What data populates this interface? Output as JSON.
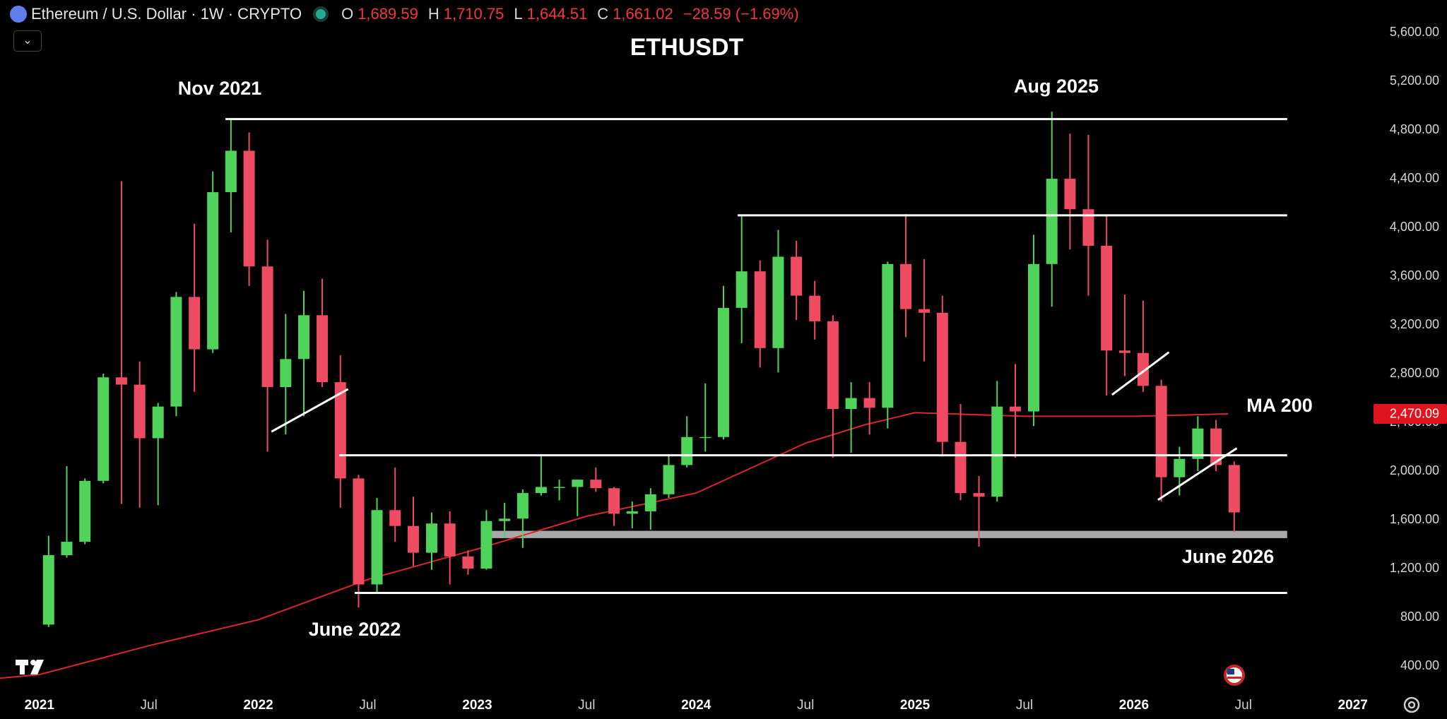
{
  "header": {
    "symbol": "Ethereum / U.S. Dollar · 1W · CRYPTO",
    "ohlc": [
      {
        "key": "O",
        "value": "1,689.59"
      },
      {
        "key": "H",
        "value": "1,710.75"
      },
      {
        "key": "L",
        "value": "1,644.51"
      },
      {
        "key": "C",
        "value": "1,661.02"
      }
    ],
    "change": "−28.59 (−1.69%)"
  },
  "chart_data": {
    "type": "candlestick",
    "title": "ETHUSDT",
    "up_color": "#4fd35a",
    "down_color": "#ef4b63",
    "x": [
      2021.042,
      2021.125,
      2021.208,
      2021.292,
      2021.375,
      2021.458,
      2021.542,
      2021.625,
      2021.708,
      2021.792,
      2021.875,
      2021.958,
      2022.042,
      2022.125,
      2022.208,
      2022.292,
      2022.375,
      2022.458,
      2022.542,
      2022.625,
      2022.708,
      2022.792,
      2022.875,
      2022.958,
      2023.042,
      2023.125,
      2023.208,
      2023.292,
      2023.375,
      2023.458,
      2023.542,
      2023.625,
      2023.708,
      2023.792,
      2023.875,
      2023.958,
      2024.042,
      2024.125,
      2024.208,
      2024.292,
      2024.375,
      2024.458,
      2024.542,
      2024.625,
      2024.708,
      2024.792,
      2024.875,
      2024.958,
      2025.042,
      2025.125,
      2025.208,
      2025.292,
      2025.375,
      2025.458,
      2025.542,
      2025.625,
      2025.708,
      2025.792,
      2025.875,
      2025.958,
      2026.042,
      2026.125,
      2026.208,
      2026.292,
      2026.375,
      2026.458
    ],
    "ohlc": [
      [
        740,
        1470,
        720,
        1310
      ],
      [
        1310,
        2040,
        1290,
        1420
      ],
      [
        1420,
        1940,
        1400,
        1920
      ],
      [
        1920,
        2800,
        1900,
        2770
      ],
      [
        2770,
        4380,
        1730,
        2710
      ],
      [
        2710,
        2900,
        1700,
        2270
      ],
      [
        2270,
        2560,
        1720,
        2530
      ],
      [
        2530,
        3470,
        2450,
        3430
      ],
      [
        3430,
        4030,
        2650,
        3000
      ],
      [
        3000,
        4460,
        2970,
        4290
      ],
      [
        4290,
        4890,
        3960,
        4630
      ],
      [
        4630,
        4780,
        3520,
        3680
      ],
      [
        3680,
        3900,
        2160,
        2690
      ],
      [
        2690,
        3290,
        2300,
        2920
      ],
      [
        2920,
        3480,
        2450,
        3280
      ],
      [
        3280,
        3580,
        2690,
        2730
      ],
      [
        2730,
        2950,
        1700,
        1940
      ],
      [
        1940,
        1970,
        880,
        1070
      ],
      [
        1070,
        1780,
        1000,
        1680
      ],
      [
        1680,
        2030,
        1420,
        1550
      ],
      [
        1550,
        1790,
        1220,
        1330
      ],
      [
        1330,
        1660,
        1190,
        1570
      ],
      [
        1570,
        1670,
        1070,
        1300
      ],
      [
        1300,
        1350,
        1150,
        1200
      ],
      [
        1200,
        1680,
        1190,
        1590
      ],
      [
        1590,
        1740,
        1460,
        1610
      ],
      [
        1610,
        1850,
        1370,
        1820
      ],
      [
        1820,
        2140,
        1800,
        1870
      ],
      [
        1870,
        1930,
        1760,
        1870
      ],
      [
        1870,
        1930,
        1630,
        1930
      ],
      [
        1930,
        2030,
        1830,
        1860
      ],
      [
        1860,
        1870,
        1550,
        1650
      ],
      [
        1650,
        1750,
        1530,
        1670
      ],
      [
        1670,
        1860,
        1520,
        1810
      ],
      [
        1810,
        2140,
        1780,
        2050
      ],
      [
        2050,
        2450,
        2030,
        2280
      ],
      [
        2280,
        2720,
        2160,
        2280
      ],
      [
        2280,
        3520,
        2260,
        3340
      ],
      [
        3340,
        4090,
        3050,
        3640
      ],
      [
        3640,
        3730,
        2850,
        3010
      ],
      [
        3010,
        3980,
        2810,
        3760
      ],
      [
        3760,
        3890,
        3240,
        3440
      ],
      [
        3440,
        3560,
        3080,
        3230
      ],
      [
        3230,
        3280,
        2110,
        2510
      ],
      [
        2510,
        2730,
        2150,
        2600
      ],
      [
        2600,
        2730,
        2300,
        2520
      ],
      [
        2520,
        3720,
        2350,
        3700
      ],
      [
        3700,
        4110,
        3100,
        3330
      ],
      [
        3330,
        3740,
        2900,
        3300
      ],
      [
        3300,
        3440,
        2120,
        2240
      ],
      [
        2240,
        2550,
        1760,
        1820
      ],
      [
        1820,
        1960,
        1380,
        1790
      ],
      [
        1790,
        2740,
        1750,
        2530
      ],
      [
        2530,
        2880,
        2110,
        2490
      ],
      [
        2490,
        3940,
        2370,
        3700
      ],
      [
        3700,
        4950,
        3350,
        4400
      ],
      [
        4400,
        4770,
        3820,
        4150
      ],
      [
        4150,
        4760,
        3440,
        3850
      ],
      [
        3850,
        4100,
        2620,
        2990
      ],
      [
        2990,
        3450,
        2780,
        2970
      ],
      [
        2970,
        3400,
        2650,
        2700
      ],
      [
        2700,
        2750,
        1750,
        1950
      ],
      [
        1950,
        2200,
        1800,
        2100
      ],
      [
        2100,
        2450,
        2000,
        2350
      ],
      [
        2350,
        2420,
        2000,
        2050
      ],
      [
        2050,
        2080,
        1500,
        1661
      ]
    ],
    "ma": {
      "name": "MA 200",
      "color": "#d9252b",
      "x": [
        2020.82,
        2021,
        2021.5,
        2022,
        2022.5,
        2023,
        2023.5,
        2024,
        2024.5,
        2024.77,
        2025,
        2025.5,
        2026,
        2026.43
      ],
      "values": [
        300,
        330,
        567,
        780,
        1110,
        1360,
        1630,
        1820,
        2230,
        2380,
        2480,
        2450,
        2450,
        2470
      ],
      "last": {
        "value": 2470.09,
        "label": "2,470.09"
      }
    },
    "levels": [
      {
        "value": 4890,
        "x": [
          2021.85,
          2026.7
        ]
      },
      {
        "value": 4100,
        "x": [
          2024.19,
          2026.7
        ]
      },
      {
        "value": 2130,
        "x": [
          2022.37,
          2026.7
        ]
      },
      {
        "value": 1000,
        "x": [
          2022.44,
          2026.7
        ]
      }
    ],
    "zone": {
      "x": [
        2023.05,
        2026.7
      ],
      "values": [
        1450,
        1510
      ]
    },
    "trendlines": [
      {
        "x": [
          2022.06,
          2022.41
        ],
        "values": [
          2324,
          2673
        ]
      },
      {
        "x": [
          2025.9,
          2026.16
        ],
        "values": [
          2627,
          2976
        ]
      },
      {
        "x": [
          2026.11,
          2026.47
        ],
        "values": [
          1764,
          2188
        ]
      }
    ],
    "annotations": [
      "Nov 2021",
      "Aug 2025",
      "June 2022",
      "June 2026"
    ],
    "xlim": [
      2020.82,
      2027.13
    ],
    "ylim": [
      200,
      5850
    ],
    "xticks": [
      2021,
      {
        "value": 2021.5,
        "label": "Jul"
      },
      2022,
      {
        "value": 2022.5,
        "label": "Jul"
      },
      2023,
      {
        "value": 2023.5,
        "label": "Jul"
      },
      2024,
      {
        "value": 2024.5,
        "label": "Jul"
      },
      2025,
      {
        "value": 2025.5,
        "label": "Jul"
      },
      2026,
      {
        "value": 2026.5,
        "label": "Jul"
      },
      2027
    ],
    "yticks": [
      {
        "value": 400,
        "label": "400.00"
      },
      {
        "value": 800,
        "label": "800.00"
      },
      {
        "value": 1200,
        "label": "1,200.00"
      },
      {
        "value": 1600,
        "label": "1,600.00"
      },
      {
        "value": 2000,
        "label": "2,000.00"
      },
      {
        "value": 2400,
        "label": "2,400.00"
      },
      {
        "value": 2800,
        "label": "2,800.00"
      },
      {
        "value": 3200,
        "label": "3,200.00"
      },
      {
        "value": 3600,
        "label": "3,600.00"
      },
      {
        "value": 4000,
        "label": "4,000.00"
      },
      {
        "value": 4400,
        "label": "4,400.00"
      },
      {
        "value": 4800,
        "label": "4,800.00"
      },
      {
        "value": 5200,
        "label": "5,200.00"
      },
      {
        "value": 5600,
        "label": "5,600.00"
      }
    ]
  }
}
